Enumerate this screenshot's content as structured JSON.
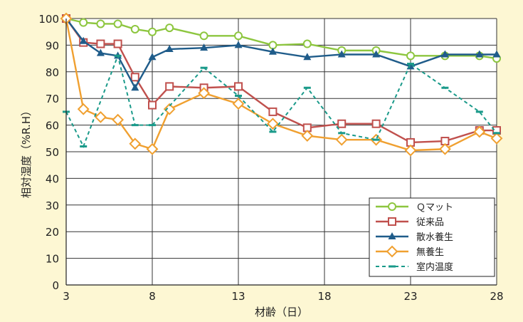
{
  "chart_data": {
    "type": "line",
    "title": "",
    "xlabel": "材齢（日）",
    "ylabel": "相対湿度（%R.H）",
    "xlim": [
      3,
      28
    ],
    "ylim": [
      0,
      100
    ],
    "xticks": [
      "3",
      "8",
      "13",
      "18",
      "23",
      "28"
    ],
    "yticks": [
      "0",
      "10",
      "20",
      "30",
      "40",
      "50",
      "60",
      "70",
      "80",
      "90",
      "100"
    ],
    "grid": true,
    "legend_position": "bottom-right",
    "series": [
      {
        "name": "Ｑマット",
        "color": "#8dc63f",
        "marker": "circle",
        "dashed": false,
        "x": [
          3,
          4,
          5,
          6,
          7,
          8,
          9,
          11,
          13,
          15,
          17,
          19,
          21,
          23,
          25,
          27,
          28
        ],
        "y": [
          100,
          98.5,
          98,
          98,
          96,
          95,
          96.5,
          93.5,
          93.5,
          90,
          90.5,
          88,
          88,
          86,
          86,
          86,
          85
        ]
      },
      {
        "name": "従来品",
        "color": "#c0504d",
        "marker": "square",
        "dashed": false,
        "x": [
          3,
          4,
          5,
          6,
          7,
          8,
          9,
          11,
          13,
          15,
          17,
          19,
          21,
          23,
          25,
          27,
          28
        ],
        "y": [
          100,
          91,
          90.5,
          90.5,
          78,
          67.5,
          74.5,
          74,
          74.5,
          65,
          59,
          60.5,
          60.5,
          53.5,
          54,
          58,
          58
        ]
      },
      {
        "name": "散水養生",
        "color": "#1f5c8a",
        "marker": "triangle",
        "dashed": false,
        "x": [
          3,
          4,
          5,
          6,
          7,
          8,
          9,
          11,
          13,
          15,
          17,
          19,
          21,
          23,
          25,
          27,
          28
        ],
        "y": [
          100,
          91.5,
          87,
          86,
          74,
          85.5,
          88.5,
          89,
          90,
          87.5,
          85.5,
          86.5,
          86.5,
          82,
          86.5,
          86.5,
          86.5
        ]
      },
      {
        "name": "無養生",
        "color": "#f0a030",
        "marker": "diamond",
        "dashed": false,
        "x": [
          3,
          4,
          5,
          6,
          7,
          8,
          9,
          11,
          13,
          15,
          17,
          19,
          21,
          23,
          25,
          27,
          28
        ],
        "y": [
          100,
          66,
          63,
          62,
          53,
          51,
          66,
          72,
          68,
          60.5,
          56,
          54.5,
          54.5,
          50.5,
          51,
          57.5,
          55
        ]
      },
      {
        "name": "室内温度",
        "color": "#1a9a8a",
        "marker": "dash",
        "dashed": true,
        "x": [
          3,
          4,
          6,
          7,
          8,
          11,
          13,
          15,
          17,
          19,
          21,
          23,
          25,
          27,
          28
        ],
        "y": [
          65,
          52,
          86,
          60,
          60,
          81.5,
          71,
          57.5,
          74,
          57,
          54.5,
          83,
          74,
          65,
          57
        ]
      }
    ]
  }
}
